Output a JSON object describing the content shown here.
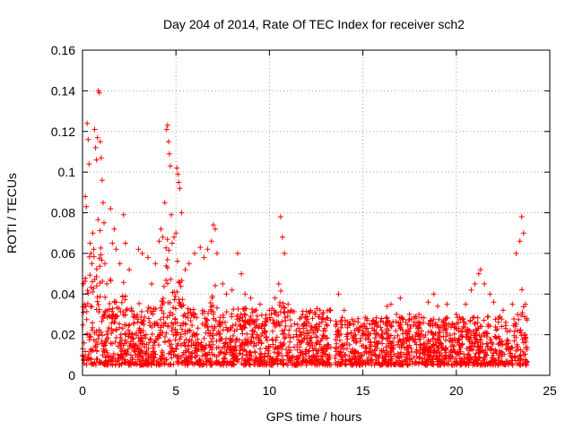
{
  "chart_data": {
    "type": "scatter",
    "title": "Day 204 of 2014, Rate Of TEC Index for receiver sch2",
    "xlabel": "GPS time / hours",
    "ylabel": "ROTI / TECUs",
    "xlim": [
      0,
      25
    ],
    "ylim": [
      0,
      0.16
    ],
    "xticks": [
      0,
      5,
      10,
      15,
      20,
      25
    ],
    "xtick_labels": [
      "0",
      "5",
      "10",
      "15",
      "20",
      "25"
    ],
    "yticks": [
      0,
      0.02,
      0.04,
      0.06,
      0.08,
      0.1,
      0.12,
      0.14,
      0.16
    ],
    "ytick_labels": [
      "0",
      "0.02",
      "0.04",
      "0.06",
      "0.08",
      "0.1",
      "0.12",
      "0.14",
      "0.16"
    ],
    "grid": true,
    "marker": "+",
    "color": "#ff0000",
    "data_range_hours": [
      0,
      23.8
    ],
    "data_gap_hours": [
      13.3,
      13.5
    ],
    "series": [
      {
        "name": "ROTI",
        "points": [
          [
            0.05,
            0.045
          ],
          [
            0.1,
            0.035
          ],
          [
            0.15,
            0.088
          ],
          [
            0.2,
            0.083
          ],
          [
            0.25,
            0.124
          ],
          [
            0.3,
            0.116
          ],
          [
            0.35,
            0.104
          ],
          [
            0.4,
            0.065
          ],
          [
            0.45,
            0.06
          ],
          [
            0.5,
            0.055
          ],
          [
            0.55,
            0.07
          ],
          [
            0.6,
            0.062
          ],
          [
            0.65,
            0.121
          ],
          [
            0.7,
            0.112
          ],
          [
            0.75,
            0.106
          ],
          [
            0.8,
            0.117
          ],
          [
            0.85,
            0.14
          ],
          [
            0.9,
            0.139
          ],
          [
            0.95,
            0.115
          ],
          [
            1.0,
            0.107
          ],
          [
            1.05,
            0.096
          ],
          [
            1.1,
            0.085
          ],
          [
            1.15,
            0.075
          ],
          [
            1.2,
            0.055
          ],
          [
            1.3,
            0.045
          ],
          [
            1.5,
            0.082
          ],
          [
            1.6,
            0.065
          ],
          [
            1.7,
            0.072
          ],
          [
            1.8,
            0.062
          ],
          [
            2.0,
            0.055
          ],
          [
            2.2,
            0.079
          ],
          [
            2.3,
            0.065
          ],
          [
            2.5,
            0.052
          ],
          [
            3.0,
            0.062
          ],
          [
            3.2,
            0.06
          ],
          [
            3.5,
            0.058
          ],
          [
            3.7,
            0.045
          ],
          [
            3.9,
            0.055
          ],
          [
            4.1,
            0.066
          ],
          [
            4.2,
            0.072
          ],
          [
            4.3,
            0.068
          ],
          [
            4.4,
            0.085
          ],
          [
            4.5,
            0.121
          ],
          [
            4.55,
            0.123
          ],
          [
            4.6,
            0.115
          ],
          [
            4.65,
            0.109
          ],
          [
            4.7,
            0.103
          ],
          [
            4.75,
            0.079
          ],
          [
            4.8,
            0.065
          ],
          [
            4.9,
            0.068
          ],
          [
            5.0,
            0.07
          ],
          [
            5.05,
            0.102
          ],
          [
            5.1,
            0.099
          ],
          [
            5.15,
            0.095
          ],
          [
            5.2,
            0.092
          ],
          [
            5.3,
            0.08
          ],
          [
            5.5,
            0.052
          ],
          [
            5.7,
            0.055
          ],
          [
            6.0,
            0.06
          ],
          [
            6.3,
            0.063
          ],
          [
            6.5,
            0.058
          ],
          [
            6.7,
            0.062
          ],
          [
            6.9,
            0.066
          ],
          [
            7.0,
            0.074
          ],
          [
            7.1,
            0.072
          ],
          [
            7.2,
            0.06
          ],
          [
            7.5,
            0.045
          ],
          [
            7.7,
            0.04
          ],
          [
            8.0,
            0.042
          ],
          [
            8.3,
            0.06
          ],
          [
            8.5,
            0.05
          ],
          [
            8.7,
            0.04
          ],
          [
            9.0,
            0.038
          ],
          [
            9.5,
            0.035
          ],
          [
            10.0,
            0.032
          ],
          [
            10.3,
            0.038
          ],
          [
            10.5,
            0.045
          ],
          [
            10.6,
            0.078
          ],
          [
            10.7,
            0.068
          ],
          [
            10.8,
            0.06
          ],
          [
            11.0,
            0.035
          ],
          [
            11.5,
            0.025
          ],
          [
            12.0,
            0.022
          ],
          [
            12.5,
            0.024
          ],
          [
            13.0,
            0.022
          ],
          [
            13.7,
            0.04
          ],
          [
            14.0,
            0.032
          ],
          [
            14.5,
            0.025
          ],
          [
            15.0,
            0.024
          ],
          [
            15.5,
            0.025
          ],
          [
            16.0,
            0.028
          ],
          [
            16.3,
            0.034
          ],
          [
            16.5,
            0.035
          ],
          [
            16.8,
            0.03
          ],
          [
            17.0,
            0.038
          ],
          [
            17.5,
            0.03
          ],
          [
            18.0,
            0.03
          ],
          [
            18.5,
            0.036
          ],
          [
            18.8,
            0.04
          ],
          [
            19.0,
            0.034
          ],
          [
            19.5,
            0.035
          ],
          [
            20.0,
            0.03
          ],
          [
            20.5,
            0.035
          ],
          [
            20.8,
            0.042
          ],
          [
            21.0,
            0.045
          ],
          [
            21.2,
            0.05
          ],
          [
            21.3,
            0.052
          ],
          [
            21.5,
            0.045
          ],
          [
            21.8,
            0.04
          ],
          [
            22.0,
            0.036
          ],
          [
            22.5,
            0.032
          ],
          [
            23.0,
            0.035
          ],
          [
            23.2,
            0.06
          ],
          [
            23.4,
            0.066
          ],
          [
            23.5,
            0.078
          ],
          [
            23.6,
            0.07
          ],
          [
            23.7,
            0.035
          ]
        ]
      }
    ]
  }
}
